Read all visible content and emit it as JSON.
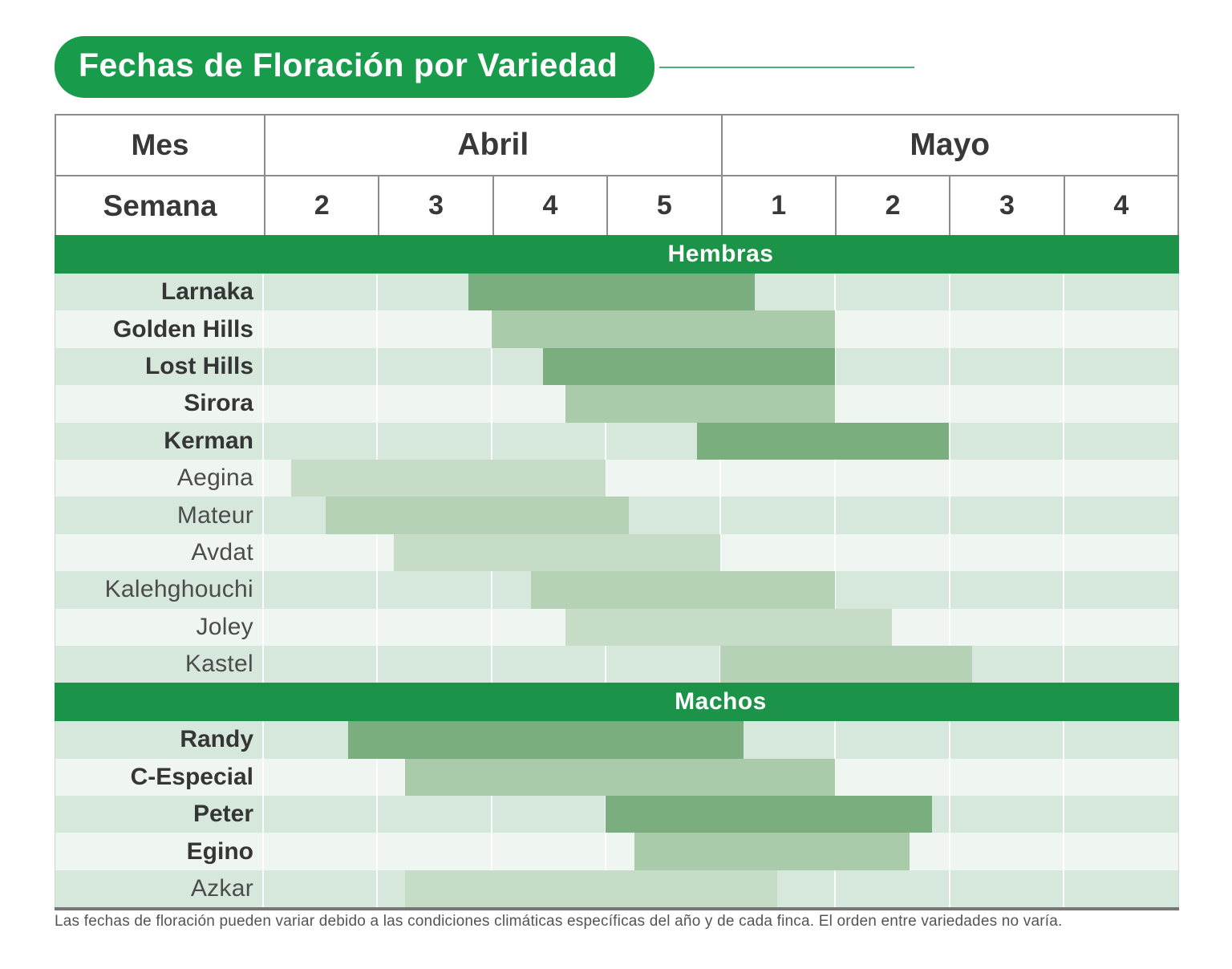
{
  "title": "Fechas de Floración por Variedad",
  "header": {
    "mes_label": "Mes",
    "semana_label": "Semana"
  },
  "footer": {
    "note": "Las fechas de floración pueden variar debido a las condiciones climáticas específicas del año y de cada finca. El orden entre variedades no varía."
  },
  "colors": {
    "green": "#189c4b",
    "banner_green": "#1c9348",
    "bar_dark": "#7bae7e",
    "bar_medium": "#a9cbaa",
    "bar_light": "#b6d2b6",
    "bar_lighter": "#c7dcc6",
    "row_bg_green": "#d6e8db",
    "row_bg_white": "#eff6f1"
  },
  "chart_data": {
    "type": "bar",
    "subtype": "gantt-horizontal",
    "title": "Fechas de Floración por Variedad",
    "x_axis": {
      "months": [
        {
          "label": "Abril",
          "weeks": [
            "2",
            "3",
            "4",
            "5"
          ]
        },
        {
          "label": "Mayo",
          "weeks": [
            "1",
            "2",
            "3",
            "4"
          ]
        }
      ],
      "unit_note": "bar start/end measured in week-columns: 0 = inicio Abril semana 2, 8 = fin Mayo semana 4",
      "unit_range": [
        0,
        8
      ],
      "grid": true
    },
    "legend_position": "none",
    "sections": [
      {
        "label": "Hembras",
        "rows": [
          {
            "name": "Larnaka",
            "bold": true,
            "shade": "dark",
            "start": 1.8,
            "end": 4.3
          },
          {
            "name": "Golden Hills",
            "bold": true,
            "shade": "medium",
            "start": 2.0,
            "end": 5.0
          },
          {
            "name": "Lost Hills",
            "bold": true,
            "shade": "dark",
            "start": 2.45,
            "end": 5.0
          },
          {
            "name": "Sirora",
            "bold": true,
            "shade": "medium",
            "start": 2.65,
            "end": 5.0
          },
          {
            "name": "Kerman",
            "bold": true,
            "shade": "dark",
            "start": 3.8,
            "end": 6.0
          },
          {
            "name": "Aegina",
            "bold": false,
            "shade": "lighter",
            "start": 0.25,
            "end": 3.0
          },
          {
            "name": "Mateur",
            "bold": false,
            "shade": "light",
            "start": 0.55,
            "end": 3.2
          },
          {
            "name": "Avdat",
            "bold": false,
            "shade": "lighter",
            "start": 1.15,
            "end": 4.0
          },
          {
            "name": "Kalehghouchi",
            "bold": false,
            "shade": "light",
            "start": 2.35,
            "end": 5.0
          },
          {
            "name": "Joley",
            "bold": false,
            "shade": "lighter",
            "start": 2.65,
            "end": 5.5
          },
          {
            "name": "Kastel",
            "bold": false,
            "shade": "light",
            "start": 4.0,
            "end": 6.2
          }
        ]
      },
      {
        "label": "Machos",
        "rows": [
          {
            "name": "Randy",
            "bold": true,
            "shade": "dark",
            "start": 0.75,
            "end": 4.2
          },
          {
            "name": "C-Especial",
            "bold": true,
            "shade": "medium",
            "start": 1.25,
            "end": 5.0
          },
          {
            "name": "Peter",
            "bold": true,
            "shade": "dark",
            "start": 3.0,
            "end": 5.85
          },
          {
            "name": "Egino",
            "bold": true,
            "shade": "medium",
            "start": 3.25,
            "end": 5.65
          },
          {
            "name": "Azkar",
            "bold": false,
            "shade": "lighter",
            "start": 1.25,
            "end": 4.5
          }
        ]
      }
    ]
  }
}
